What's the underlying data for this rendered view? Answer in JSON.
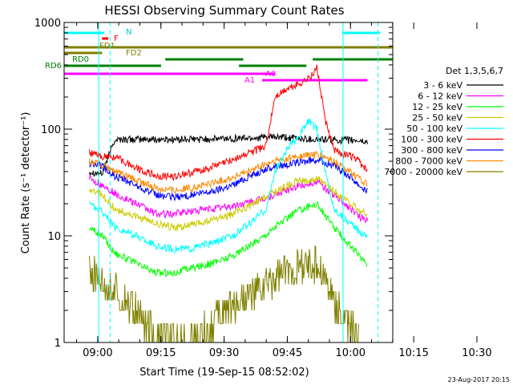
{
  "chart_data": {
    "type": "line",
    "title": "HESSI Observing Summary Count Rates",
    "xlabel": "Start Time (19-Sep-15 08:52:02)",
    "ylabel": "Count Rate (s⁻¹ detector⁻¹)",
    "yscale": "log",
    "ylim": [
      1,
      1000
    ],
    "xlim_minutes": [
      0,
      78
    ],
    "x_ticks": [
      "09:00",
      "09:15",
      "09:30",
      "09:45",
      "10:00",
      "10:15",
      "10:30"
    ],
    "y_ticks": [
      "1",
      "10",
      "100",
      "1000"
    ],
    "date_stamp": "23-Aug-2017 20:15",
    "legend": {
      "placement": "right",
      "title": "Det 1,3,5,6,7",
      "entries": [
        {
          "label": "3 - 6 keV",
          "color": "#000000"
        },
        {
          "label": "6 - 12 keV",
          "color": "#ff00ff"
        },
        {
          "label": "12 - 25 keV",
          "color": "#00ff00"
        },
        {
          "label": "25 - 50 keV",
          "color": "#cccc00"
        },
        {
          "label": "50 - 100 keV",
          "color": "#00ffff"
        },
        {
          "label": "100 - 300 keV",
          "color": "#ff0000"
        },
        {
          "label": "300 - 800 keV",
          "color": "#0000ff"
        },
        {
          "label": "800 - 7000 keV",
          "color": "#ff8800"
        },
        {
          "label": "7000 - 20000 keV",
          "color": "#808000"
        }
      ]
    },
    "flag_labels": {
      "N": "N",
      "F": "F",
      "FD1": "FD1",
      "FD2": "FD2",
      "RD0": "RD0",
      "RD6": "RD6",
      "A0": "A0",
      "A1": "A1"
    },
    "series": [
      {
        "name": "3 - 6 keV",
        "color": "#000000",
        "points": [
          [
            6,
            40
          ],
          [
            9,
            38
          ],
          [
            12,
            80
          ],
          [
            20,
            80
          ],
          [
            30,
            80
          ],
          [
            40,
            82
          ],
          [
            50,
            84
          ],
          [
            60,
            80
          ],
          [
            70,
            78
          ],
          [
            72,
            75
          ]
        ]
      },
      {
        "name": "300 - 800 keV",
        "color": "#0000ff",
        "points": [
          [
            6,
            48
          ],
          [
            9,
            45
          ],
          [
            12,
            36
          ],
          [
            17,
            30
          ],
          [
            22,
            24
          ],
          [
            26,
            23
          ],
          [
            30,
            24
          ],
          [
            35,
            26
          ],
          [
            40,
            30
          ],
          [
            45,
            38
          ],
          [
            50,
            45
          ],
          [
            55,
            48
          ],
          [
            60,
            52
          ],
          [
            64,
            45
          ],
          [
            68,
            36
          ],
          [
            70,
            30
          ],
          [
            72,
            26
          ]
        ]
      },
      {
        "name": "800 - 7000 keV",
        "color": "#ff8800",
        "points": [
          [
            6,
            50
          ],
          [
            9,
            46
          ],
          [
            12,
            40
          ],
          [
            17,
            33
          ],
          [
            22,
            28
          ],
          [
            26,
            27
          ],
          [
            30,
            28
          ],
          [
            35,
            31
          ],
          [
            40,
            35
          ],
          [
            45,
            42
          ],
          [
            50,
            50
          ],
          [
            55,
            55
          ],
          [
            60,
            58
          ],
          [
            64,
            50
          ],
          [
            68,
            40
          ],
          [
            70,
            34
          ],
          [
            72,
            30
          ]
        ]
      },
      {
        "name": "100 - 300 keV",
        "color": "#ff0000",
        "points": [
          [
            6,
            60
          ],
          [
            9,
            55
          ],
          [
            12,
            55
          ],
          [
            15,
            48
          ],
          [
            18,
            42
          ],
          [
            22,
            36
          ],
          [
            26,
            36
          ],
          [
            30,
            39
          ],
          [
            35,
            44
          ],
          [
            40,
            52
          ],
          [
            45,
            62
          ],
          [
            48,
            70
          ],
          [
            50,
            200
          ],
          [
            53,
            240
          ],
          [
            56,
            270
          ],
          [
            59,
            320
          ],
          [
            60,
            380
          ],
          [
            62,
            120
          ],
          [
            64,
            65
          ],
          [
            66,
            58
          ],
          [
            68,
            56
          ],
          [
            70,
            50
          ],
          [
            72,
            40
          ]
        ]
      },
      {
        "name": "6 - 12 keV",
        "color": "#ff00ff",
        "points": [
          [
            6,
            35
          ],
          [
            9,
            30
          ],
          [
            12,
            25
          ],
          [
            17,
            20
          ],
          [
            22,
            16
          ],
          [
            26,
            16
          ],
          [
            30,
            17
          ],
          [
            35,
            18
          ],
          [
            40,
            19
          ],
          [
            45,
            21
          ],
          [
            50,
            24
          ],
          [
            55,
            29
          ],
          [
            60,
            32
          ],
          [
            64,
            24
          ],
          [
            68,
            18
          ],
          [
            70,
            15
          ],
          [
            72,
            14
          ]
        ]
      },
      {
        "name": "25 - 50 keV",
        "color": "#cccc00",
        "points": [
          [
            6,
            28
          ],
          [
            9,
            24
          ],
          [
            12,
            18
          ],
          [
            17,
            15
          ],
          [
            22,
            13
          ],
          [
            26,
            12
          ],
          [
            30,
            12.5
          ],
          [
            35,
            14
          ],
          [
            40,
            16
          ],
          [
            45,
            20
          ],
          [
            50,
            26
          ],
          [
            55,
            32
          ],
          [
            60,
            34
          ],
          [
            64,
            26
          ],
          [
            68,
            20
          ],
          [
            70,
            17
          ],
          [
            72,
            16
          ]
        ]
      },
      {
        "name": "50 - 100 keV",
        "color": "#00ffff",
        "points": [
          [
            6,
            20
          ],
          [
            9,
            17
          ],
          [
            12,
            12
          ],
          [
            17,
            10
          ],
          [
            22,
            8
          ],
          [
            26,
            7.5
          ],
          [
            30,
            7.6
          ],
          [
            35,
            8.5
          ],
          [
            40,
            10
          ],
          [
            45,
            14
          ],
          [
            48,
            18
          ],
          [
            50,
            40
          ],
          [
            53,
            65
          ],
          [
            56,
            90
          ],
          [
            58,
            120
          ],
          [
            60,
            100
          ],
          [
            62,
            40
          ],
          [
            64,
            18
          ],
          [
            68,
            13
          ],
          [
            70,
            11
          ],
          [
            72,
            10
          ]
        ]
      },
      {
        "name": "12 - 25 keV",
        "color": "#00ff00",
        "points": [
          [
            6,
            12
          ],
          [
            9,
            10
          ],
          [
            12,
            7
          ],
          [
            17,
            5.5
          ],
          [
            22,
            4.5
          ],
          [
            26,
            4.5
          ],
          [
            30,
            5
          ],
          [
            35,
            5.5
          ],
          [
            40,
            6.5
          ],
          [
            45,
            8.5
          ],
          [
            50,
            12
          ],
          [
            55,
            17
          ],
          [
            60,
            20
          ],
          [
            64,
            12
          ],
          [
            68,
            8
          ],
          [
            70,
            6.5
          ],
          [
            72,
            5.5
          ]
        ]
      },
      {
        "name": "7000 - 20000 keV",
        "color": "#808000",
        "points": [
          [
            6,
            5
          ],
          [
            9,
            4
          ],
          [
            12,
            3
          ],
          [
            15,
            2.5
          ],
          [
            18,
            1.8
          ],
          [
            20,
            1.4
          ],
          [
            22,
            1.2
          ],
          [
            25,
            1
          ],
          [
            28,
            1
          ],
          [
            32,
            1.1
          ],
          [
            35,
            1.5
          ],
          [
            38,
            2
          ],
          [
            42,
            2.5
          ],
          [
            46,
            3
          ],
          [
            50,
            4
          ],
          [
            55,
            5
          ],
          [
            60,
            5.5
          ],
          [
            62,
            4
          ],
          [
            64,
            2.5
          ],
          [
            66,
            1.8
          ],
          [
            68,
            1.3
          ],
          [
            70,
            1
          ]
        ]
      }
    ]
  }
}
